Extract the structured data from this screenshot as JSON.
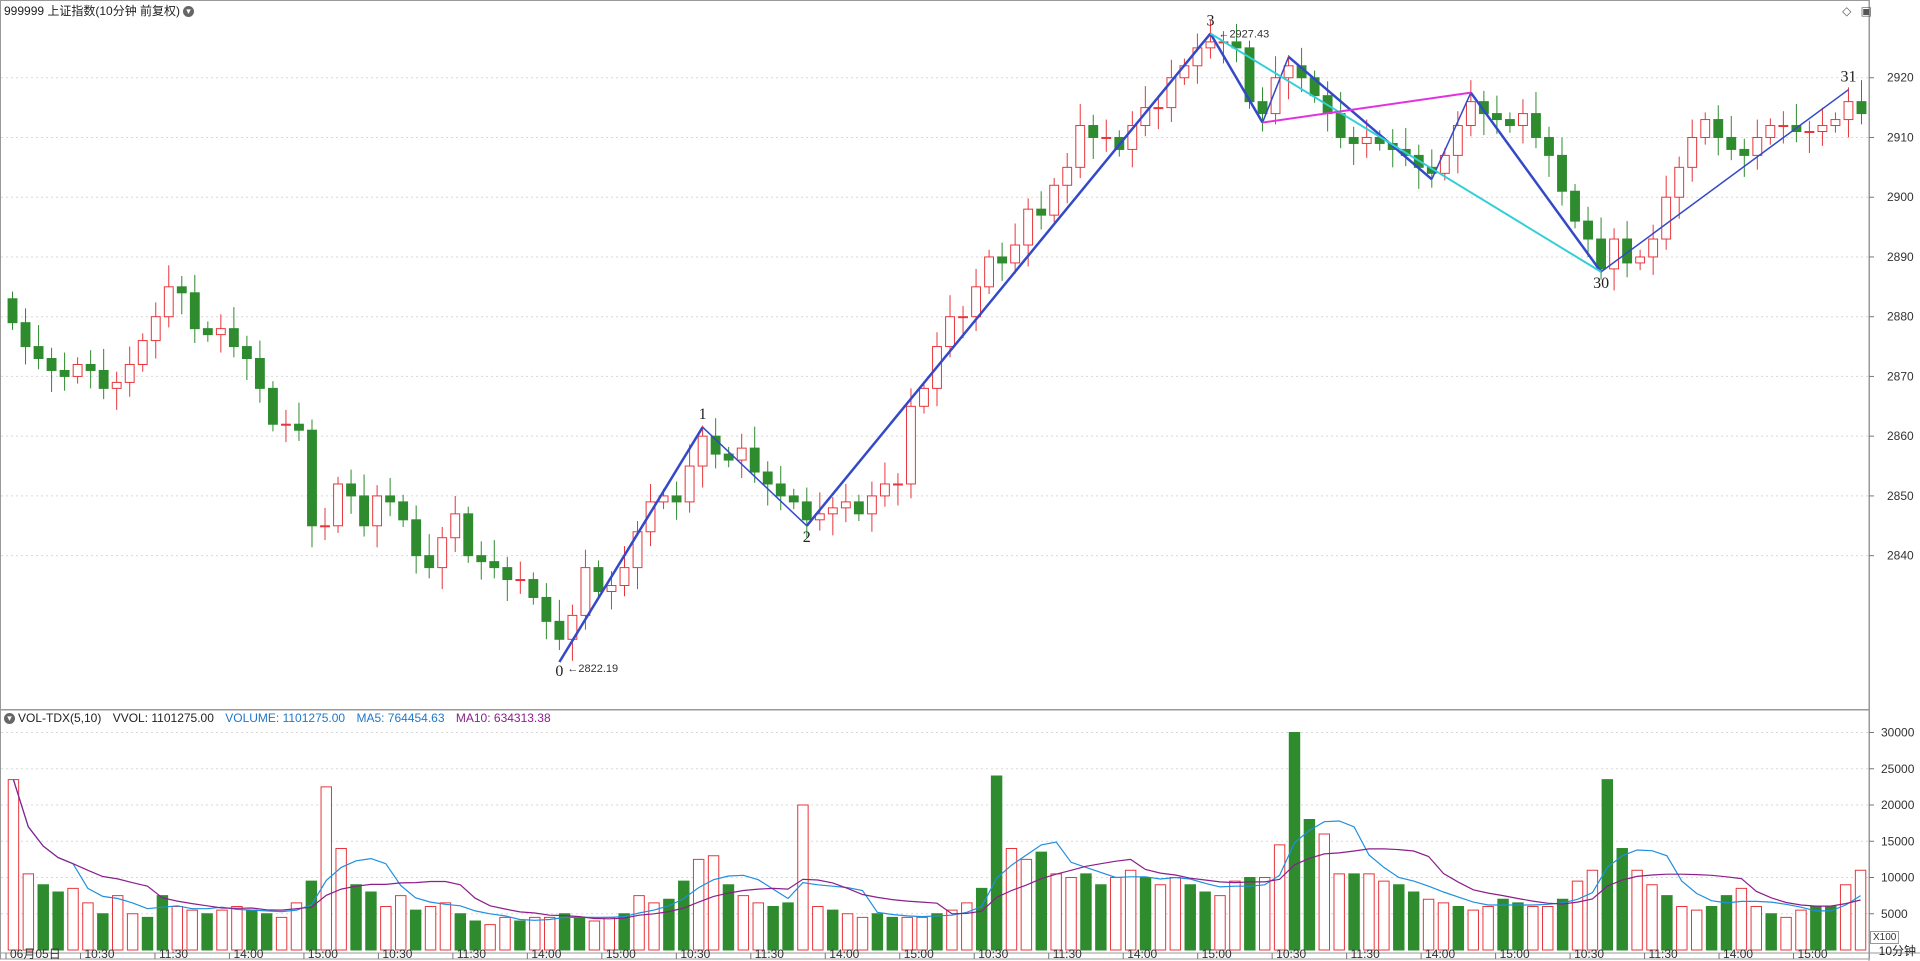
{
  "header": {
    "title": "999999 上证指数(10分钟 前复权)",
    "dropdown_icon": "chevron-down-icon"
  },
  "toolbar": {
    "icons": [
      "diamond-icon",
      "panel-toggle-icon"
    ]
  },
  "volume_header": {
    "indicator": "VOL-TDX(5,10)",
    "vvol": "VVOL: 1101275.00",
    "volume": "VOLUME: 1101275.00",
    "ma5": "MA5: 764454.63",
    "ma10": "MA10: 634313.38",
    "colors": {
      "volume": "#1f77c9",
      "ma5": "#1f77c9",
      "ma10": "#8b1f8b"
    }
  },
  "footer": {
    "period": "10分钟",
    "unit": "X100"
  },
  "colors": {
    "up": "#e8353b",
    "down": "#2e8b2e",
    "wave": "#3349c8",
    "magenta": "#e033e0",
    "cyan": "#33cfd8",
    "ma5": "#1f8fe0",
    "ma10": "#8b1f8b"
  },
  "chart_data": [
    {
      "type": "candlestick",
      "title": "999999 上证指数(10分钟 前复权)",
      "ylim": [
        2815,
        2930
      ],
      "yticks": [
        2840,
        2850,
        2860,
        2870,
        2880,
        2890,
        2900,
        2910,
        2920
      ],
      "x_ticks": [
        "06月05日",
        "10:30",
        "11:30",
        "14:00",
        "15:00",
        "10:30",
        "11:30",
        "14:00",
        "15:00",
        "10:30",
        "11:30",
        "14:00",
        "15:00",
        "10:30",
        "11:30",
        "14:00",
        "15:00",
        "10:30",
        "11:30",
        "14:00",
        "15:00",
        "10:30",
        "11:30",
        "14:00",
        "15:00"
      ],
      "close": [
        2879,
        2875,
        2873,
        2871,
        2870,
        2872,
        2871,
        2868,
        2869,
        2872,
        2876,
        2880,
        2885,
        2884,
        2878,
        2877,
        2878,
        2875,
        2873,
        2868,
        2862,
        2862,
        2861,
        2845,
        2845,
        2852,
        2850,
        2845,
        2850,
        2849,
        2846,
        2840,
        2838,
        2843,
        2847,
        2840,
        2839,
        2838,
        2836,
        2836,
        2833,
        2829,
        2826,
        2830,
        2838,
        2834,
        2835,
        2838,
        2844,
        2849,
        2850,
        2849,
        2855,
        2860,
        2857,
        2856,
        2858,
        2854,
        2852,
        2850,
        2849,
        2846,
        2847,
        2848,
        2849,
        2847,
        2850,
        2852,
        2852,
        2865,
        2868,
        2875,
        2880,
        2880,
        2885,
        2890,
        2889,
        2892,
        2898,
        2897,
        2902,
        2905,
        2912,
        2910,
        2910,
        2908,
        2912,
        2915,
        2915,
        2920,
        2922,
        2925,
        2926,
        2926,
        2925,
        2916,
        2914,
        2920,
        2922,
        2920,
        2917,
        2914,
        2910,
        2909,
        2910,
        2909,
        2908,
        2907,
        2905,
        2904,
        2907,
        2912,
        2916,
        2914,
        2913,
        2912,
        2914,
        2910,
        2907,
        2901,
        2896,
        2893,
        2888,
        2893,
        2889,
        2890,
        2893,
        2900,
        2905,
        2910,
        2913,
        2910,
        2908,
        2907,
        2910,
        2912,
        2912,
        2911,
        2911,
        2912,
        2913,
        2916,
        2914
      ]
    },
    {
      "type": "bar",
      "title": "VOL-TDX(5,10)",
      "ylim": [
        0,
        32000
      ],
      "yticks": [
        5000,
        10000,
        15000,
        20000,
        25000,
        30000
      ],
      "unit": "X100",
      "series": [
        {
          "name": "VOLUME"
        },
        {
          "name": "MA5"
        },
        {
          "name": "MA10"
        }
      ],
      "values": [
        23500,
        10500,
        9000,
        8000,
        8500,
        6500,
        5000,
        7500,
        5000,
        4500,
        7500,
        6000,
        5500,
        5000,
        5500,
        6000,
        5500,
        5000,
        4500,
        6500,
        9500,
        22500,
        14000,
        9000,
        8000,
        6000,
        7500,
        5500,
        6000,
        6500,
        5000,
        4000,
        3500,
        4500,
        4000,
        4500,
        4500,
        5000,
        4500,
        4000,
        4500,
        5000,
        7500,
        6500,
        7000,
        9500,
        12500,
        13000,
        9000,
        7500,
        6500,
        6000,
        6500,
        20000,
        6000,
        5500,
        5000,
        4500,
        5000,
        4500,
        4500,
        4500,
        5000,
        5500,
        6500,
        8500,
        24000,
        14000,
        12500,
        13500,
        10500,
        10000,
        10500,
        9000,
        10000,
        11000,
        10000,
        9000,
        10000,
        9000,
        8000,
        7500,
        9500,
        10000,
        10000,
        14500,
        30000,
        18000,
        16000,
        10500,
        10500,
        10500,
        9500,
        9000,
        8000,
        7000,
        6500,
        6000,
        5500,
        6000,
        7000,
        6500,
        6000,
        6000,
        7000,
        9500,
        11000,
        23500,
        14000,
        11000,
        9000,
        7500,
        6000,
        5500,
        6000,
        7500,
        8500,
        6000,
        5000,
        4500,
        5500,
        6000,
        6000,
        9000,
        11000
      ]
    }
  ],
  "annotations": {
    "wave_labels": [
      "0",
      "1",
      "2",
      "3",
      "30",
      "31"
    ],
    "price_low": "2822.19",
    "price_high": "2927.43"
  }
}
